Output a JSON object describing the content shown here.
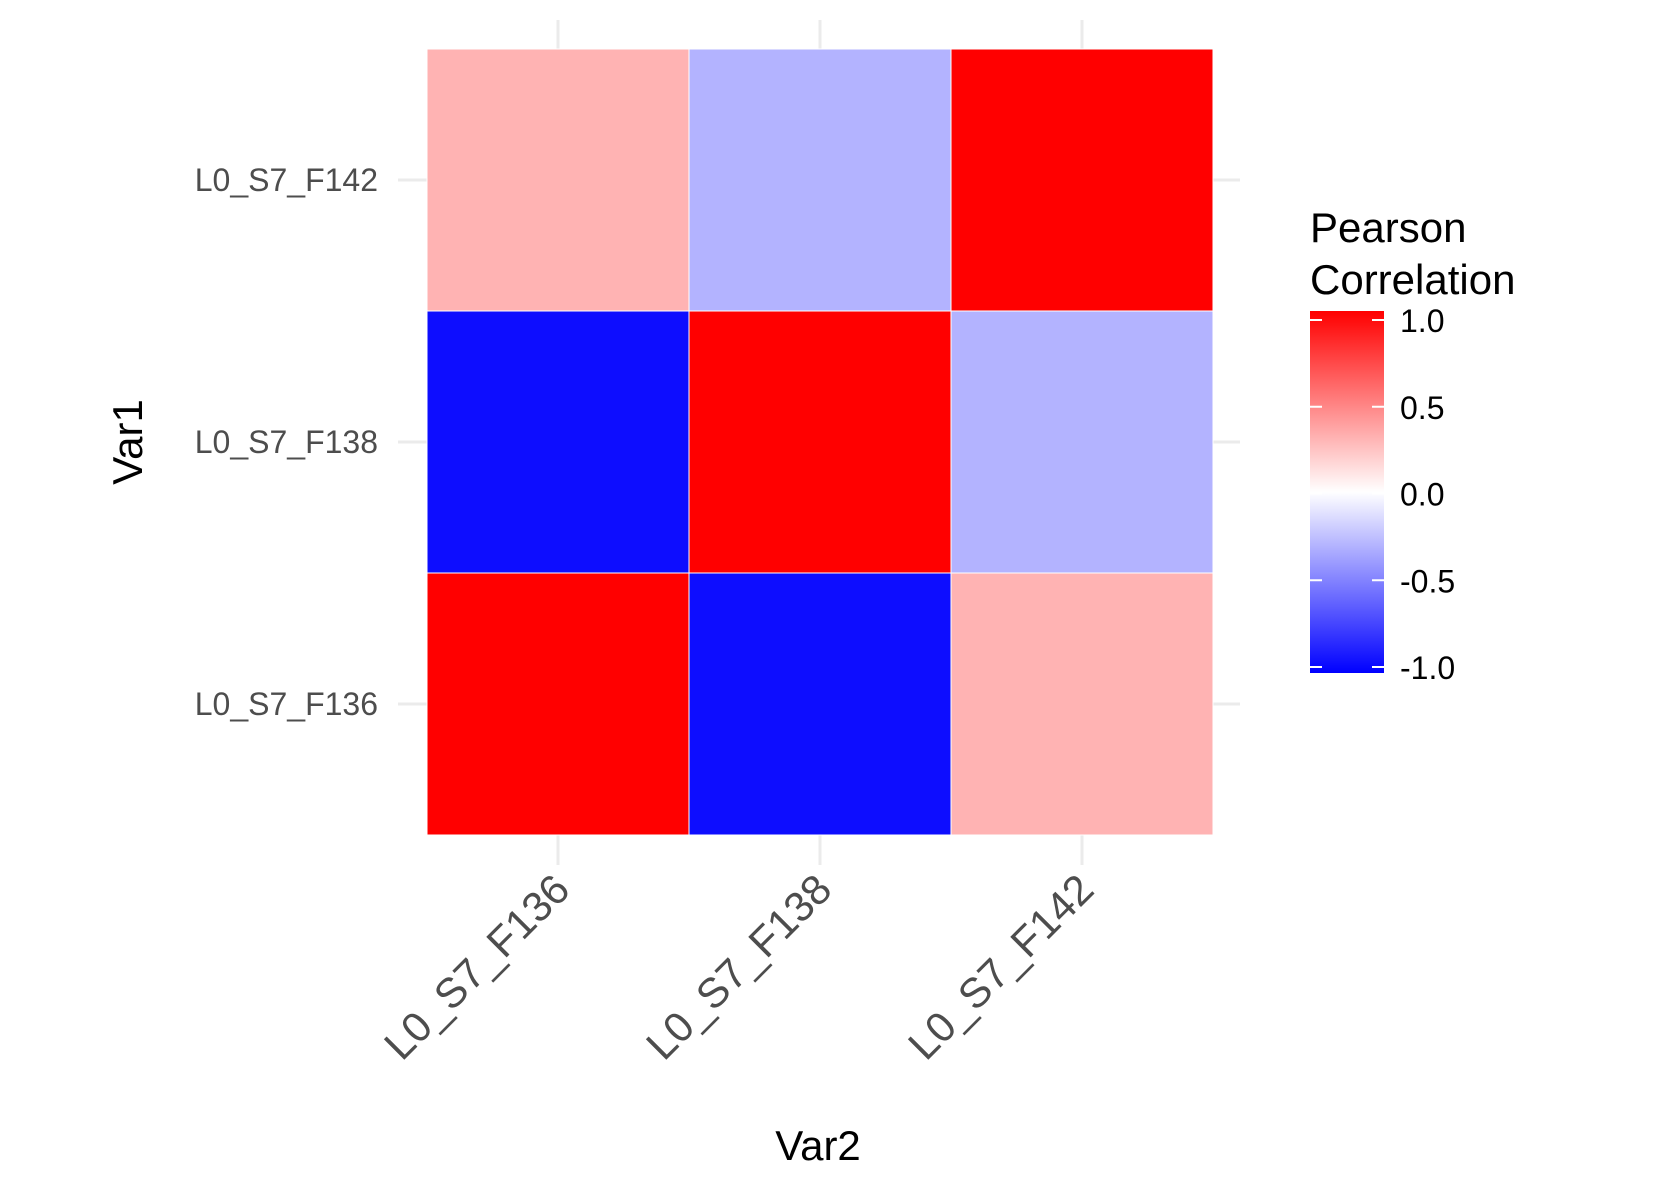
{
  "chart_data": {
    "type": "heatmap",
    "title": "",
    "xlabel": "Var2",
    "ylabel": "Var1",
    "x_categories": [
      "L0_S7_F136",
      "L0_S7_F138",
      "L0_S7_F142"
    ],
    "y_categories": [
      "L0_S7_F136",
      "L0_S7_F138",
      "L0_S7_F142"
    ],
    "values": [
      [
        1.0,
        -0.95,
        0.3
      ],
      [
        -0.95,
        1.0,
        -0.3
      ],
      [
        0.3,
        -0.3,
        1.0
      ]
    ],
    "value_note": "values[i][j]: Var1 = y_categories[i], Var2 = x_categories[j]",
    "color_scale": {
      "low": "#0000ff",
      "mid": "#ffffff",
      "high": "#ff0000",
      "limits": [
        -1,
        1
      ]
    },
    "legend": {
      "title_lines": [
        "Pearson",
        "Correlation"
      ],
      "ticks": [
        1.0,
        0.5,
        0.0,
        -0.5,
        -1.0
      ],
      "tick_labels": [
        "1.0",
        "0.5",
        "0.0",
        "-0.5",
        "-1.0"
      ],
      "position": "right"
    },
    "grid": true
  }
}
